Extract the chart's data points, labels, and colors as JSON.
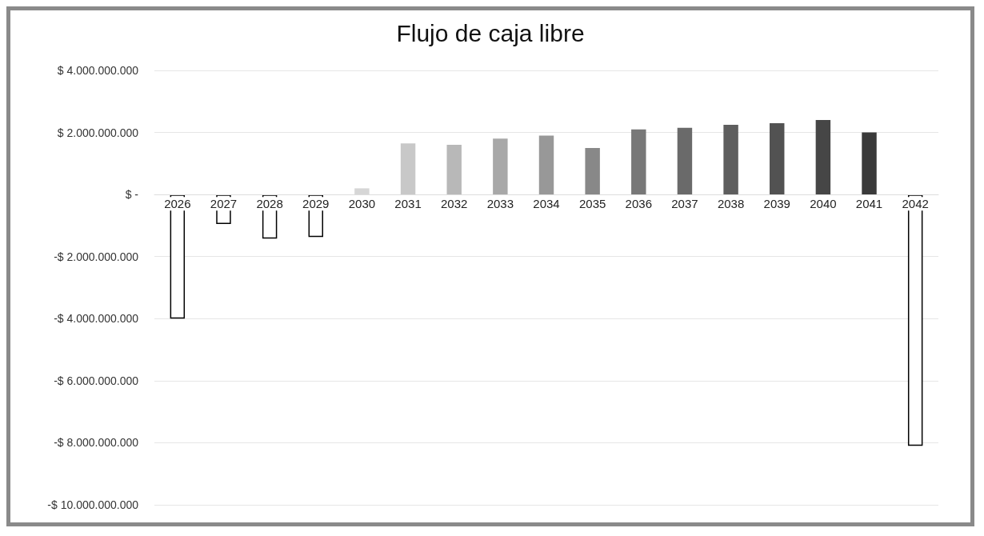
{
  "chart_data": {
    "type": "bar",
    "title": "Flujo de caja libre",
    "categories": [
      "2026",
      "2027",
      "2028",
      "2029",
      "2030",
      "2031",
      "2032",
      "2033",
      "2034",
      "2035",
      "2036",
      "2037",
      "2038",
      "2039",
      "2040",
      "2041",
      "2042"
    ],
    "values": [
      -4000000000,
      -950000000,
      -1420000000,
      -1370000000,
      200000000,
      1650000000,
      1600000000,
      1800000000,
      1900000000,
      1500000000,
      2100000000,
      2150000000,
      2250000000,
      2300000000,
      2400000000,
      2000000000,
      -8100000000
    ],
    "colors": [
      "#ffffff",
      "#ffffff",
      "#ffffff",
      "#ffffff",
      "#d6d6d6",
      "#c8c8c8",
      "#b8b8b8",
      "#a8a8a8",
      "#989898",
      "#888888",
      "#787878",
      "#6a6a6a",
      "#5e5e5e",
      "#525252",
      "#464646",
      "#3a3a3a",
      "#ffffff"
    ],
    "ylim": [
      -10000000000,
      4000000000
    ],
    "yticks": [
      {
        "value": -10000000000,
        "label": "-$ 10.000.000.000"
      },
      {
        "value": -8000000000,
        "label": "-$ 8.000.000.000"
      },
      {
        "value": -6000000000,
        "label": "-$ 6.000.000.000"
      },
      {
        "value": -4000000000,
        "label": "-$ 4.000.000.000"
      },
      {
        "value": -2000000000,
        "label": "-$ 2.000.000.000"
      },
      {
        "value": 0,
        "label": "$ -"
      },
      {
        "value": 2000000000,
        "label": "$ 2.000.000.000"
      },
      {
        "value": 4000000000,
        "label": "$ 4.000.000.000"
      }
    ],
    "grid": "y"
  }
}
